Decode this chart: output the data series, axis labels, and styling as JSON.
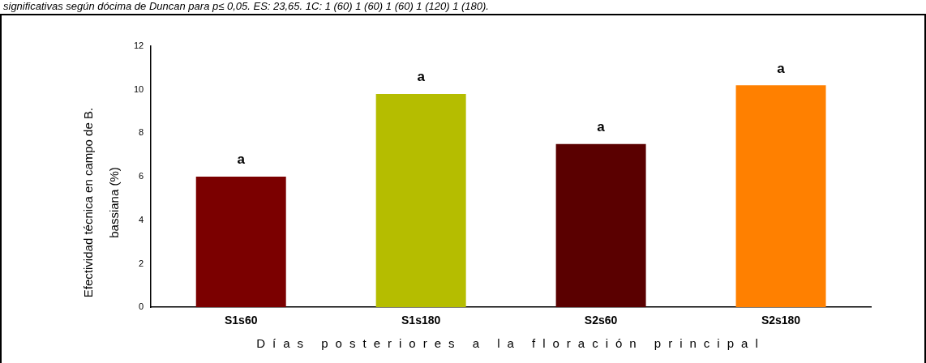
{
  "chart_data": {
    "type": "bar",
    "ylabel": "Efectividad técnica en campo de B. bassiana (%)",
    "xlabel": "Días posteriores a la floración principal",
    "annotations": [
      "significativas según dócima de Duncan para p≤ 0,05. ES: 23,65. 1C: 1 (60) 1 (60) 1 (60) 1 (120) 1 (180)."
    ],
    "categories": [
      "S1s60",
      "S1s180",
      "S2s60",
      "S2s180"
    ],
    "values": [
      6,
      9.8,
      7.5,
      10.2
    ],
    "colors": [
      "#7b0000",
      "#b5bd00",
      "#5a0000",
      "#ff8000"
    ],
    "value_labels": [
      "a",
      "a",
      "a",
      "a"
    ],
    "ylim": [
      0,
      12
    ],
    "yticks": [
      0,
      2,
      4,
      6,
      8,
      10,
      12
    ],
    "grid": false,
    "legend": false
  }
}
